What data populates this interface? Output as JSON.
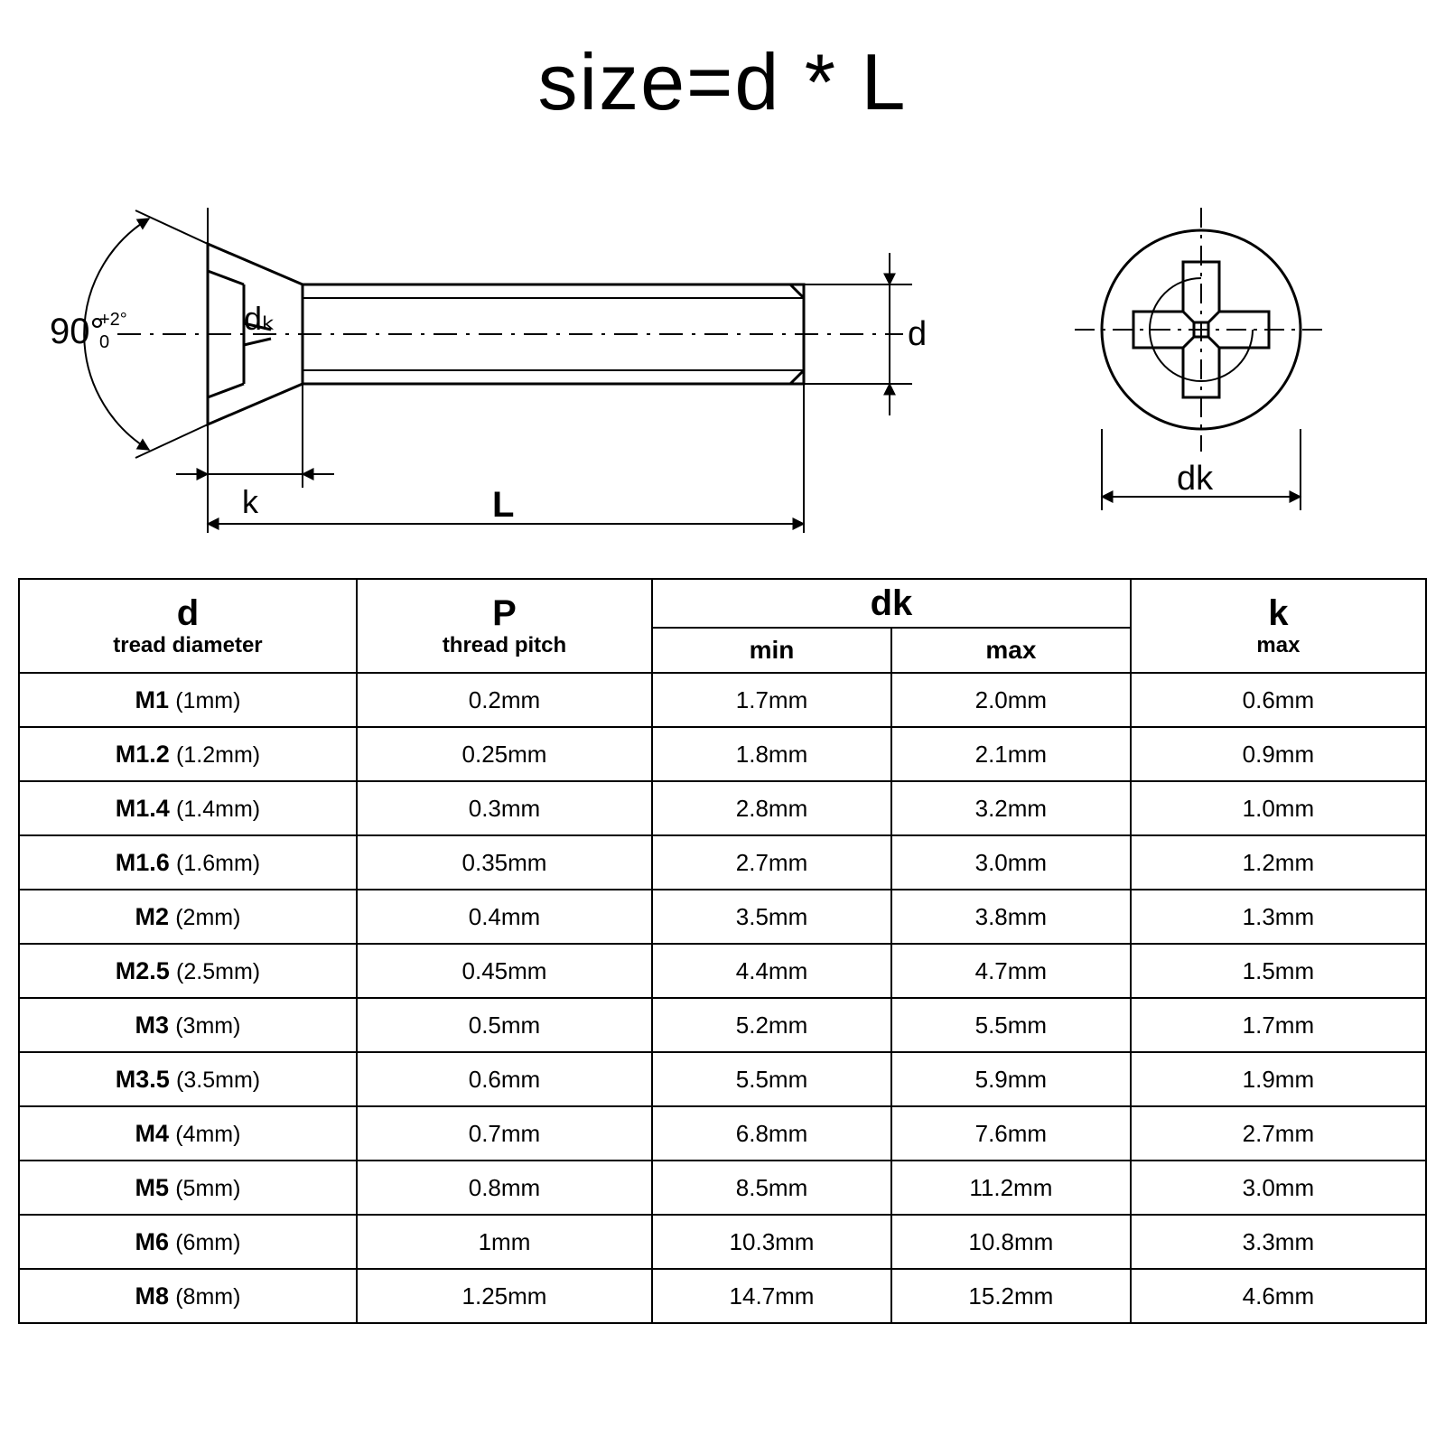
{
  "title_text": "size=d * L",
  "diagram": {
    "angle_label_main": "90°",
    "angle_label_sup_top": "+2°",
    "angle_label_sup_bot": "0",
    "label_dk_inside": "dₖ",
    "label_d": "d",
    "label_k": "k",
    "label_L": "L",
    "label_dk_head": "dk",
    "stroke_color": "#000000",
    "stroke_width_main": 3,
    "stroke_width_dim": 2
  },
  "table": {
    "columns": {
      "d": {
        "title": "d",
        "subtitle": "tread diameter"
      },
      "P": {
        "title": "P",
        "subtitle": "thread pitch"
      },
      "dk": {
        "title": "dk",
        "sub_min": "min",
        "sub_max": "max"
      },
      "k": {
        "title": "k",
        "sub_max": "max"
      }
    },
    "rows": [
      {
        "d_name": "M1",
        "d_mm": "(1mm)",
        "P": "0.2mm",
        "dk_min": "1.7mm",
        "dk_max": "2.0mm",
        "k_max": "0.6mm"
      },
      {
        "d_name": "M1.2",
        "d_mm": "(1.2mm)",
        "P": "0.25mm",
        "dk_min": "1.8mm",
        "dk_max": "2.1mm",
        "k_max": "0.9mm"
      },
      {
        "d_name": "M1.4",
        "d_mm": "(1.4mm)",
        "P": "0.3mm",
        "dk_min": "2.8mm",
        "dk_max": "3.2mm",
        "k_max": "1.0mm"
      },
      {
        "d_name": "M1.6",
        "d_mm": "(1.6mm)",
        "P": "0.35mm",
        "dk_min": "2.7mm",
        "dk_max": "3.0mm",
        "k_max": "1.2mm"
      },
      {
        "d_name": "M2",
        "d_mm": "(2mm)",
        "P": "0.4mm",
        "dk_min": "3.5mm",
        "dk_max": "3.8mm",
        "k_max": "1.3mm"
      },
      {
        "d_name": "M2.5",
        "d_mm": "(2.5mm)",
        "P": "0.45mm",
        "dk_min": "4.4mm",
        "dk_max": "4.7mm",
        "k_max": "1.5mm"
      },
      {
        "d_name": "M3",
        "d_mm": "(3mm)",
        "P": "0.5mm",
        "dk_min": "5.2mm",
        "dk_max": "5.5mm",
        "k_max": "1.7mm"
      },
      {
        "d_name": "M3.5",
        "d_mm": "(3.5mm)",
        "P": "0.6mm",
        "dk_min": "5.5mm",
        "dk_max": "5.9mm",
        "k_max": "1.9mm"
      },
      {
        "d_name": "M4",
        "d_mm": "(4mm)",
        "P": "0.7mm",
        "dk_min": "6.8mm",
        "dk_max": "7.6mm",
        "k_max": "2.7mm"
      },
      {
        "d_name": "M5",
        "d_mm": "(5mm)",
        "P": "0.8mm",
        "dk_min": "8.5mm",
        "dk_max": "11.2mm",
        "k_max": "3.0mm"
      },
      {
        "d_name": "M6",
        "d_mm": "(6mm)",
        "P": "1mm",
        "dk_min": "10.3mm",
        "dk_max": "10.8mm",
        "k_max": "3.3mm"
      },
      {
        "d_name": "M8",
        "d_mm": "(8mm)",
        "P": "1.25mm",
        "dk_min": "14.7mm",
        "dk_max": "15.2mm",
        "k_max": "4.6mm"
      }
    ],
    "border_color": "#000000",
    "font_family": "Arial"
  }
}
